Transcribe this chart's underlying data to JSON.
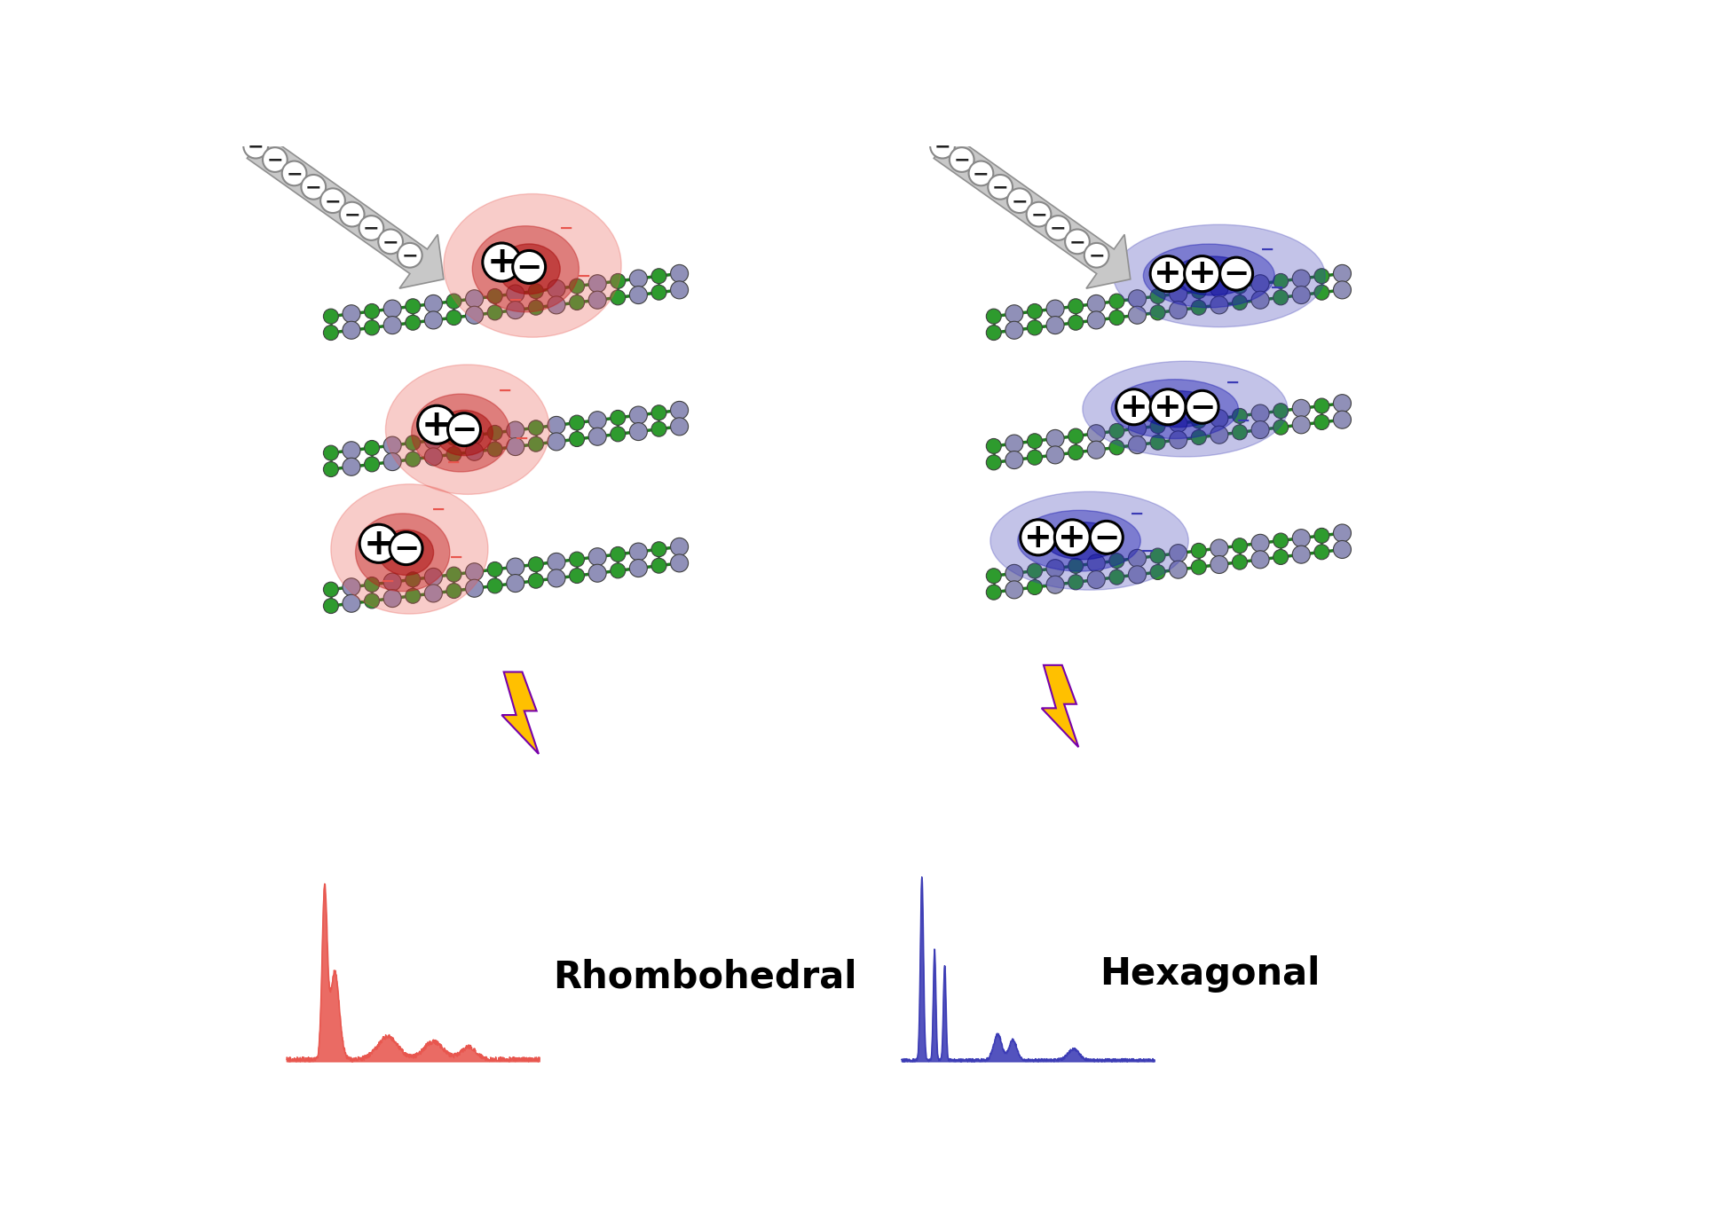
{
  "background_color": "#ffffff",
  "fig_width": 19.28,
  "fig_height": 13.72,
  "left_label": "Rhombohedral",
  "right_label": "Hexagonal",
  "left_color": "#E8564E",
  "right_color": "#3B3BB5",
  "lightning_gold": "#FFC000",
  "lightning_outline": "#9900CC",
  "beam_color": "#C8C8C8",
  "beam_edge": "#909090",
  "green_atom": "#2E9B2E",
  "gray_atom": "#9090B8",
  "bond_color": "#1E7A1E",
  "layer_tilt_deg": -7
}
